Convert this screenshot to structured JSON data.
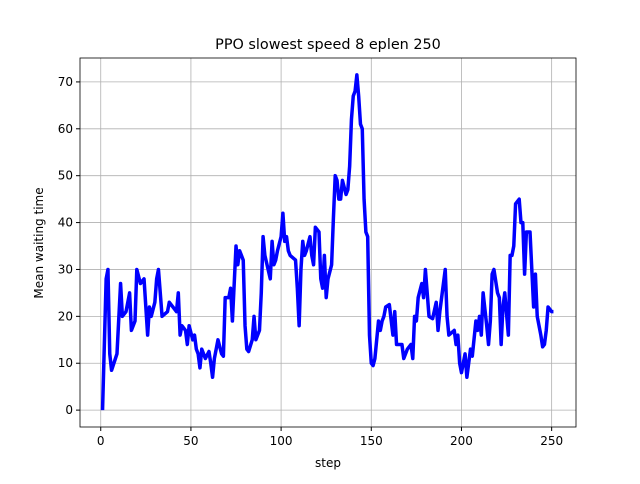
{
  "chart_data": {
    "type": "line",
    "title": "PPO slowest speed 8 eplen 250",
    "x_label": "step",
    "y_label": "Mean waiting time",
    "x": [
      1,
      3,
      4,
      5,
      6,
      9,
      11,
      12,
      14,
      16,
      17,
      19,
      20,
      22,
      24,
      26,
      27,
      28,
      30,
      31,
      32,
      33,
      34,
      37,
      38,
      40,
      42,
      43,
      44,
      45,
      47,
      48,
      49,
      51,
      52,
      53,
      54,
      55,
      56,
      58,
      60,
      61,
      62,
      63,
      65,
      67,
      68,
      69,
      71,
      72,
      73,
      75,
      76,
      77,
      79,
      80,
      81,
      82,
      84,
      85,
      86,
      88,
      89,
      90,
      91,
      94,
      95,
      96,
      97,
      98,
      100,
      101,
      102,
      103,
      104,
      105,
      108,
      109,
      110,
      111,
      112,
      113,
      114,
      116,
      117,
      118,
      119,
      121,
      122,
      123,
      124,
      125,
      126,
      128,
      129,
      130,
      131,
      132,
      133,
      134,
      136,
      137,
      138,
      139,
      140,
      141,
      142,
      143,
      144,
      145,
      146,
      147,
      148,
      149,
      150,
      151,
      152,
      154,
      155,
      156,
      157,
      158,
      160,
      162,
      163,
      164,
      167,
      168,
      170,
      172,
      173,
      174,
      175,
      176,
      178,
      179,
      180,
      181,
      182,
      184,
      186,
      187,
      188,
      190,
      191,
      192,
      193,
      196,
      197,
      198,
      199,
      200,
      202,
      203,
      205,
      206,
      208,
      209,
      210,
      211,
      212,
      214,
      215,
      216,
      217,
      218,
      220,
      221,
      222,
      223,
      224,
      226,
      227,
      228,
      229,
      230,
      232,
      233,
      234,
      235,
      236,
      238,
      239,
      240,
      241,
      242,
      244,
      245,
      246,
      247,
      248,
      250,
      251
    ],
    "series": [
      {
        "name": "mean waiting time",
        "color": "#0000ff",
        "values": [
          0,
          28,
          30,
          12,
          8.5,
          12,
          27,
          20,
          21,
          25,
          17,
          19,
          30,
          27,
          28,
          16,
          22,
          20,
          23,
          28,
          30,
          25,
          20,
          21,
          23,
          22,
          21,
          25,
          16,
          18,
          17,
          14,
          18,
          15,
          16,
          13,
          12,
          9,
          13,
          11,
          12.5,
          10,
          7,
          11,
          15,
          12,
          11.5,
          24,
          24,
          26,
          19,
          35,
          31,
          34,
          32,
          18,
          13,
          12.5,
          15,
          20,
          15,
          17,
          25,
          37,
          33,
          28,
          36,
          31,
          32,
          34,
          37,
          42,
          36,
          37,
          34,
          33,
          32,
          26,
          18,
          30,
          36,
          33,
          34,
          37,
          33,
          31,
          39,
          38,
          28,
          26,
          33,
          24,
          28,
          31,
          41,
          50,
          49,
          45,
          45,
          49,
          46,
          47,
          52,
          62,
          67,
          68,
          71.5,
          67,
          61,
          60,
          45,
          38,
          37,
          16,
          10,
          9.5,
          11,
          19,
          17,
          19,
          20,
          22,
          22.5,
          16,
          21,
          14,
          14,
          11,
          13,
          14,
          11,
          20,
          19,
          24,
          27,
          24,
          30,
          25,
          20,
          19.5,
          23,
          17,
          21,
          27,
          30,
          20,
          16,
          17,
          14,
          16,
          10,
          8,
          12,
          7,
          13,
          11.5,
          19,
          17,
          20,
          16,
          25,
          18,
          14,
          19,
          29,
          30,
          25,
          24,
          14,
          22,
          25,
          16,
          33,
          33,
          35,
          44,
          45,
          40,
          40,
          29,
          38,
          38,
          30,
          22,
          29,
          20,
          16,
          13.5,
          14,
          17,
          22,
          21,
          21
        ]
      }
    ],
    "xlim": [
      -11.5,
      263.5
    ],
    "ylim": [
      -3.6,
      75.1
    ],
    "xticks": [
      0,
      50,
      100,
      150,
      200,
      250
    ],
    "yticks": [
      0,
      10,
      20,
      30,
      40,
      50,
      60,
      70
    ],
    "grid": true
  }
}
